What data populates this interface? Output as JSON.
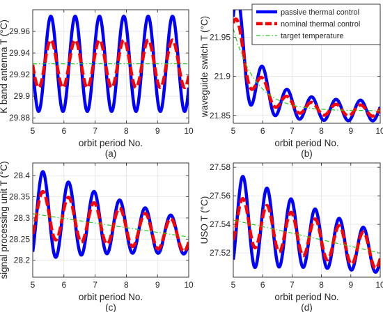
{
  "chart_data": [
    {
      "type": "line",
      "caption": "(a)",
      "xlabel": "orbit period No.",
      "ylabel": "K band antenna T (°C)",
      "xlim": [
        5,
        10
      ],
      "ylim": [
        29.875,
        29.98
      ],
      "xticks": [
        5,
        6,
        7,
        8,
        9,
        10
      ],
      "xtick_labels": [
        "5",
        "6",
        "7",
        "8",
        "9",
        "10"
      ],
      "yticks": [
        29.88,
        29.9,
        29.92,
        29.94,
        29.96
      ],
      "ytick_labels": [
        "29.88",
        "29.9",
        "29.92",
        "29.94",
        "29.96"
      ],
      "grid": true,
      "model": {
        "period": 0.78,
        "phase0": 5.58,
        "mean": 29.93,
        "trend": 0.0,
        "tmin": 5.0,
        "tmax": 10.0
      },
      "series": [
        {
          "name": "passive thermal control",
          "color": "#0000ff",
          "style": "solid",
          "width": 4.5,
          "amplitude": 0.044,
          "decay": 0.0
        },
        {
          "name": "nominal thermal control",
          "color": "#ff0000",
          "style": "dashed",
          "width": 4.5,
          "amplitude": 0.022,
          "decay": 0.0
        },
        {
          "name": "target temperature",
          "color": "#22cc22",
          "style": "dashdot",
          "width": 1.2,
          "amplitude": 0.0,
          "decay": 0.0
        }
      ]
    },
    {
      "type": "line",
      "caption": "(b)",
      "xlabel": "orbit period No.",
      "ylabel": "waveguide switch T (°C)",
      "xlim": [
        5,
        10
      ],
      "ylim": [
        21.84,
        21.985
      ],
      "xticks": [
        5,
        6,
        7,
        8,
        9,
        10
      ],
      "xtick_labels": [
        "5",
        "6",
        "7",
        "8",
        "9",
        "10"
      ],
      "yticks": [
        21.85,
        21.9,
        21.95
      ],
      "ytick_labels": [
        "21.85",
        "21.9",
        "21.95"
      ],
      "grid": true,
      "legend": {
        "position": "top-right"
      },
      "model": {
        "period": 0.83,
        "phase0": 5.18,
        "mean": 21.856,
        "trend": 0.0,
        "tmin": 5.0,
        "tmax": 10.0,
        "exp": {
          "amplitude": 0.105,
          "tau": 0.75
        }
      },
      "series": [
        {
          "name": "passive thermal control",
          "color": "#0000ff",
          "style": "solid",
          "width": 4.5,
          "amplitude": 0.013,
          "decay": 0.0,
          "boost": 0.06,
          "boost_tau": 0.75
        },
        {
          "name": "nominal thermal control",
          "color": "#ff0000",
          "style": "dashed",
          "width": 4.5,
          "amplitude": 0.007,
          "decay": 0.0,
          "boost": 0.027,
          "boost_tau": 0.75
        },
        {
          "name": "target temperature",
          "color": "#22cc22",
          "style": "dashdot",
          "width": 1.2,
          "amplitude": 0.0,
          "decay": 0.0
        }
      ]
    },
    {
      "type": "line",
      "caption": "(c)",
      "xlabel": "orbit period No.",
      "ylabel": "signal processing unit T (°C)",
      "xlim": [
        5,
        10
      ],
      "ylim": [
        28.16,
        28.43
      ],
      "xticks": [
        5,
        6,
        7,
        8,
        9,
        10
      ],
      "xtick_labels": [
        "5",
        "6",
        "7",
        "8",
        "9",
        "10"
      ],
      "yticks": [
        28.2,
        28.25,
        28.3,
        28.35,
        28.4
      ],
      "ytick_labels": [
        "28.2",
        "28.25",
        "28.3",
        "28.35",
        "28.4"
      ],
      "grid": true,
      "model": {
        "period": 0.82,
        "phase0": 5.33,
        "mean": 28.31,
        "trend": -0.011,
        "tmin": 5.0,
        "tmax": 10.0
      },
      "series": [
        {
          "name": "passive thermal control",
          "color": "#0000ff",
          "style": "solid",
          "width": 4.5,
          "amplitude": 0.11,
          "decay": 0.02
        },
        {
          "name": "nominal thermal control",
          "color": "#ff0000",
          "style": "dashed",
          "width": 4.5,
          "amplitude": 0.058,
          "decay": 0.01
        },
        {
          "name": "target temperature",
          "color": "#22cc22",
          "style": "dashdot",
          "width": 1.2,
          "amplitude": 0.0,
          "decay": 0.0
        }
      ]
    },
    {
      "type": "line",
      "caption": "(d)",
      "xlabel": "orbit period No.",
      "ylabel": "USO T (°C)",
      "xlim": [
        5,
        10
      ],
      "ylim": [
        27.503,
        27.583
      ],
      "xticks": [
        5,
        6,
        7,
        8,
        9,
        10
      ],
      "xtick_labels": [
        "5",
        "6",
        "7",
        "8",
        "9",
        "10"
      ],
      "yticks": [
        27.52,
        27.54,
        27.56,
        27.58
      ],
      "ytick_labels": [
        "27.52",
        "27.54",
        "27.56",
        "27.58"
      ],
      "grid": true,
      "model": {
        "period": 0.82,
        "phase0": 5.33,
        "mean": 27.543,
        "trend": -0.0046,
        "tmin": 5.0,
        "tmax": 10.0
      },
      "series": [
        {
          "name": "passive thermal control",
          "color": "#0000ff",
          "style": "solid",
          "width": 4.5,
          "amplitude": 0.034,
          "decay": 0.018
        },
        {
          "name": "nominal thermal control",
          "color": "#ff0000",
          "style": "dashed",
          "width": 4.5,
          "amplitude": 0.017,
          "decay": 0.008
        },
        {
          "name": "target temperature",
          "color": "#22cc22",
          "style": "dashdot",
          "width": 1.2,
          "amplitude": 0.0,
          "decay": 0.0
        }
      ]
    }
  ],
  "legend": {
    "entries": [
      {
        "label": "passive thermal control",
        "color": "#0000ff",
        "style": "solid"
      },
      {
        "label": "nominal thermal control",
        "color": "#ff0000",
        "style": "dashed"
      },
      {
        "label": "target temperature",
        "color": "#22cc22",
        "style": "dashdot"
      }
    ]
  }
}
